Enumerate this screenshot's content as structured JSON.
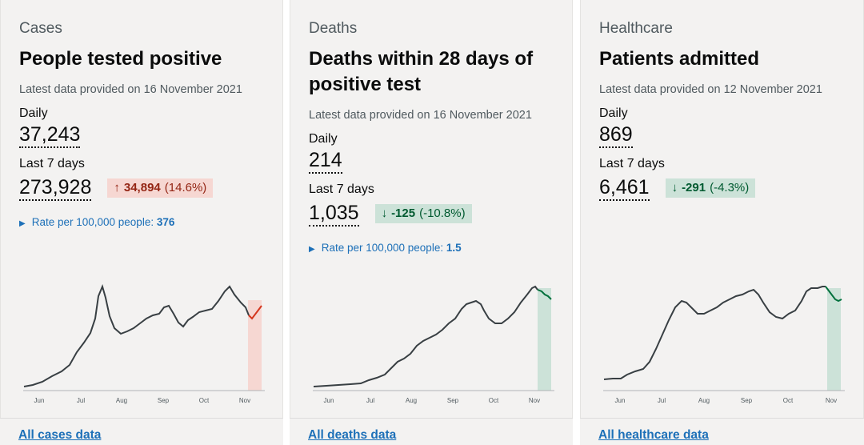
{
  "cards": [
    {
      "category": "Cases",
      "title": "People tested positive",
      "latest": "Latest data provided on 16 November 2021",
      "daily_label": "Daily",
      "daily_value": "37,243",
      "week_label": "Last 7 days",
      "week_value": "273,928",
      "change_value": "34,894",
      "change_percent": "(14.6%)",
      "change_direction": "up",
      "rate_label": "Rate per 100,000 people:",
      "rate_value": "376",
      "footer_link": "All cases data"
    },
    {
      "category": "Deaths",
      "title": "Deaths within 28 days of positive test",
      "latest": "Latest data provided on 16 November 2021",
      "daily_label": "Daily",
      "daily_value": "214",
      "week_label": "Last 7 days",
      "week_value": "1,035",
      "change_value": "-125",
      "change_percent": "(-10.8%)",
      "change_direction": "down",
      "rate_label": "Rate per 100,000 people:",
      "rate_value": "1.5",
      "footer_link": "All deaths data"
    },
    {
      "category": "Healthcare",
      "title": "Patients admitted",
      "latest": "Latest data provided on 12 November 2021",
      "daily_label": "Daily",
      "daily_value": "869",
      "week_label": "Last 7 days",
      "week_value": "6,461",
      "change_value": "-291",
      "change_percent": "(-4.3%)",
      "change_direction": "down",
      "footer_link": "All healthcare data"
    }
  ],
  "chart_data": [
    {
      "type": "line",
      "months": [
        "Jun",
        "Jul",
        "Aug",
        "Sep",
        "Oct",
        "Nov"
      ],
      "highlight": "last 7 days",
      "highlight_color": "#d4351c"
    },
    {
      "type": "line",
      "months": [
        "Jun",
        "Jul",
        "Aug",
        "Sep",
        "Oct",
        "Nov"
      ],
      "highlight": "last 7 days",
      "highlight_color": "#00703c"
    },
    {
      "type": "line",
      "months": [
        "Jun",
        "Jul",
        "Aug",
        "Sep",
        "Oct",
        "Nov"
      ],
      "highlight": "last 7 days",
      "highlight_color": "#00703c"
    }
  ],
  "colors": {
    "link": "#1d70b8",
    "up_bg": "#f6d7d2",
    "up_text": "#942514",
    "down_bg": "#cce2d8",
    "down_text": "#005a30"
  }
}
